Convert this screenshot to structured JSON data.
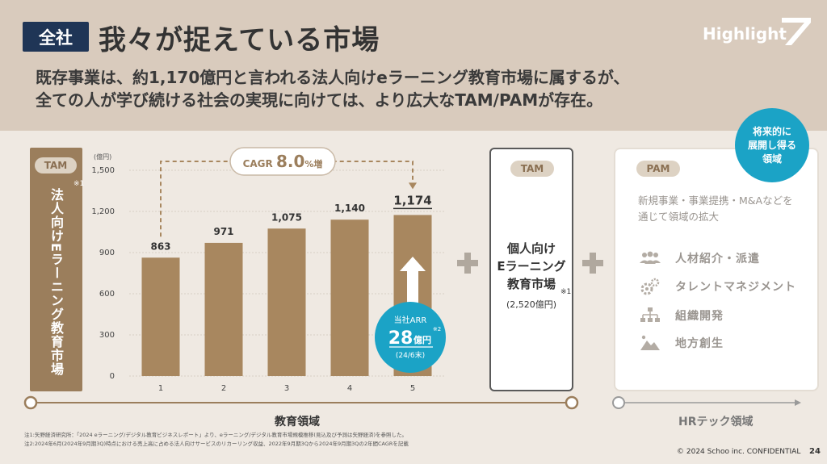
{
  "header": {
    "badge": "全社",
    "title": "我々が捉えている市場",
    "subtitle_line1": "既存事業は、約1,170億円と言われる法人向けeラーニング教育市場に属するが、",
    "subtitle_line2": "全ての人が学び続ける社会の実現に向けては、より広大なTAM/PAMが存在。",
    "logo_text": "Highlight"
  },
  "tam_corporate": {
    "pill": "TAM",
    "label": "法人向けEラーニング教育市場",
    "note_mark": "※1"
  },
  "chart_data": {
    "type": "bar",
    "unit_label": "(億円)",
    "categories": [
      "1",
      "2",
      "3",
      "4",
      "5"
    ],
    "values": [
      863,
      971,
      1075,
      1140,
      1174
    ],
    "value_labels": [
      "863",
      "971",
      "1,075",
      "1,140",
      "1,174"
    ],
    "ylim": [
      0,
      1500
    ],
    "yticks": [
      0,
      300,
      600,
      900,
      1200,
      1500
    ],
    "ytick_labels": [
      "0",
      "300",
      "600",
      "900",
      "1,200",
      "1,500"
    ],
    "grid": true,
    "bar_color": "#a8875f",
    "cagr_prefix": "CAGR ",
    "cagr_value": "8.0",
    "cagr_suffix": "%増",
    "arr_title": "当社ARR",
    "arr_value": "28",
    "arr_unit": "億円",
    "arr_note_mark": "※2",
    "arr_date": "(24/6末)"
  },
  "tam_individual": {
    "pill": "TAM",
    "line1": "個人向け",
    "line2": "Eラーニング",
    "line3": "教育市場",
    "note_mark": "※1",
    "size": "(2,520億円)"
  },
  "pam": {
    "pill": "PAM",
    "desc_line1": "新規事業・事業提携・M&Aなどを",
    "desc_line2": "通じて領域の拡大",
    "items": [
      {
        "label": "人材紹介・派遣",
        "icon": "people-icon"
      },
      {
        "label": "タレントマネジメント",
        "icon": "gears-icon"
      },
      {
        "label": "組織開発",
        "icon": "org-chart-icon"
      },
      {
        "label": "地方創生",
        "icon": "landscape-icon"
      }
    ]
  },
  "future": {
    "line1": "将来的に",
    "line2": "展開し得る",
    "line3": "領域"
  },
  "timeline": {
    "edu_label": "教育領域",
    "hr_label": "HRテック領域"
  },
  "notes": {
    "note1": "注1:矢野経済研究所：「2024 eラーニング/デジタル教育ビジネスレポート」より、eラーニング/デジタル教育市場規模推移(見込及び予測は矢野経済)を参照した。",
    "note2": "注2:2024年6月(2024年9月期3Q)時点における売上高に占める法人向けサービスのリカーリング収益、2022年9月期3Qから2024年9月期3Qの2年間CAGRを記載"
  },
  "footer": {
    "copyright": "© 2024 Schoo inc. CONFIDENTIAL",
    "page": "24"
  },
  "colors": {
    "header_bg": "#d9cbbd",
    "badge_bg": "#1f3556",
    "brown": "#9b7e5c",
    "accent_blue": "#1ba3c6"
  }
}
